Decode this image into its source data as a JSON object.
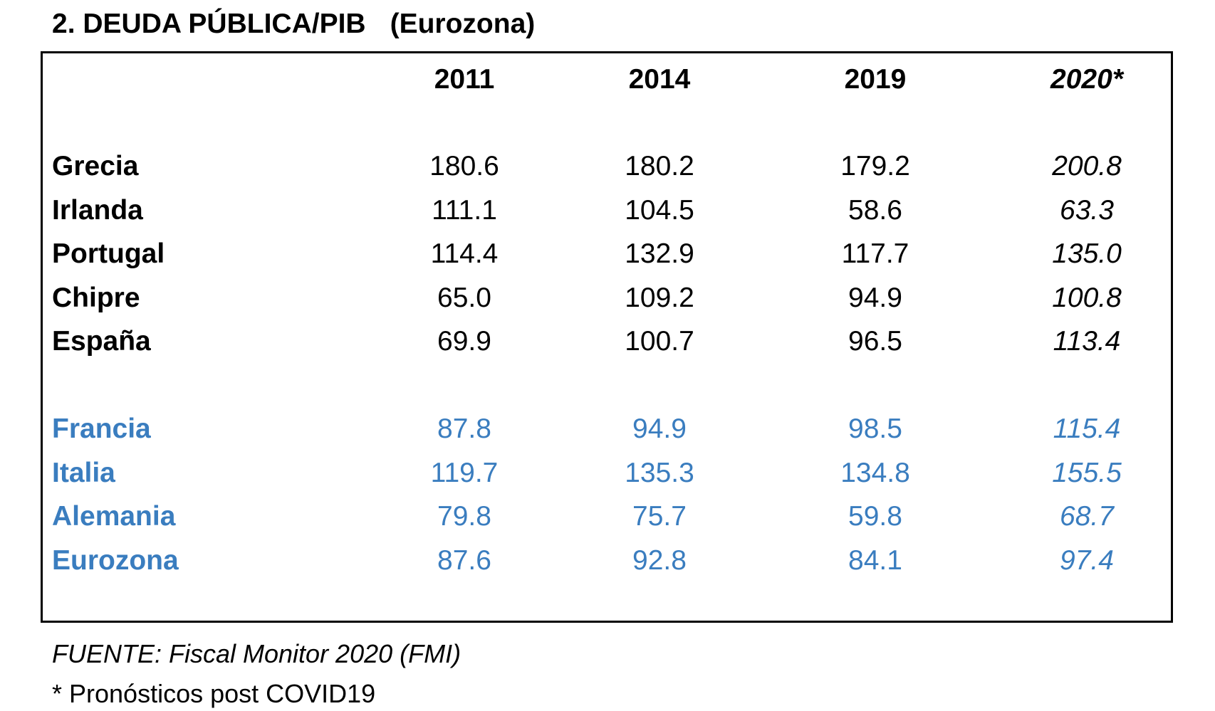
{
  "title": {
    "main": "2. DEUDA PÚBLICA/PIB",
    "sub": "(Eurozona)"
  },
  "table": {
    "columns": [
      "2011",
      "2014",
      "2019",
      "2020*"
    ],
    "group1": [
      {
        "country": "Grecia",
        "values": [
          "180.6",
          "180.2",
          "179.2",
          "200.8"
        ]
      },
      {
        "country": "Irlanda",
        "values": [
          "111.1",
          "104.5",
          "58.6",
          "63.3"
        ]
      },
      {
        "country": "Portugal",
        "values": [
          "114.4",
          "132.9",
          "117.7",
          "135.0"
        ]
      },
      {
        "country": "Chipre",
        "values": [
          "65.0",
          "109.2",
          "94.9",
          "100.8"
        ]
      },
      {
        "country": "España",
        "values": [
          "69.9",
          "100.7",
          "96.5",
          "113.4"
        ]
      }
    ],
    "group2": [
      {
        "country": "Francia",
        "values": [
          "87.8",
          "94.9",
          "98.5",
          "115.4"
        ]
      },
      {
        "country": "Italia",
        "values": [
          "119.7",
          "135.3",
          "134.8",
          "155.5"
        ]
      },
      {
        "country": "Alemania",
        "values": [
          "79.8",
          "75.7",
          "59.8",
          "68.7"
        ]
      },
      {
        "country": "Eurozona",
        "values": [
          "87.6",
          "92.8",
          "84.1",
          "97.4"
        ]
      }
    ]
  },
  "colors": {
    "group2_text": "#3a7dbf"
  },
  "footer": {
    "source": "FUENTE: Fiscal Monitor 2020 (FMI)",
    "note": "* Pronósticos post COVID19"
  }
}
